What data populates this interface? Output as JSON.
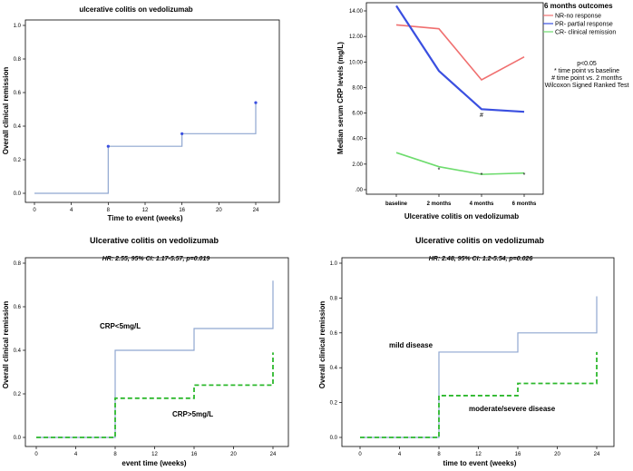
{
  "chart_data": [
    {
      "type": "step",
      "title": "ulcerative colitis on vedolizumab",
      "xlabel": "Time to event (weeks)",
      "ylabel": "Overall clinical remission",
      "xlim": [
        0,
        24
      ],
      "ylim": [
        0,
        1.0
      ],
      "xticks": [
        "0",
        "4",
        "8",
        "12",
        "16",
        "20",
        "24"
      ],
      "yticks": [
        "0.0",
        "0.2",
        "0.4",
        "0.6",
        "0.8",
        "1.0"
      ],
      "series": [
        {
          "color": "#8fa6d0",
          "style": "solid",
          "x": [
            0,
            8,
            16,
            24
          ],
          "y": [
            0,
            0.28,
            0.355,
            0.54
          ],
          "censor": [
            [
              8,
              0.28
            ],
            [
              16,
              0.355
            ],
            [
              24,
              0.54
            ]
          ]
        }
      ]
    },
    {
      "type": "line",
      "title": "6 months outcomes",
      "xlabel": "Ulcerative colitis on vedolizumab",
      "ylabel": "Median serum CRP levels (mg/L)",
      "categories": [
        "baseline",
        "2 months",
        "4 months",
        "6 months"
      ],
      "ylim": [
        0,
        14
      ],
      "yticks": [
        ".00",
        "2.00",
        "4.00",
        "6.00",
        "8.00",
        "10.00",
        "12.00",
        "14.00"
      ],
      "series": [
        {
          "name": "NR-no response",
          "color": "#f07070",
          "values": [
            12.9,
            12.6,
            8.6,
            10.4
          ]
        },
        {
          "name": "PR- partial response",
          "color": "#3a4fe0",
          "values": [
            14.4,
            9.3,
            6.3,
            6.1
          ]
        },
        {
          "name": "CR- clinical remission",
          "color": "#6edc6e",
          "values": [
            2.9,
            1.8,
            1.2,
            1.3
          ]
        }
      ],
      "markers": [
        {
          "label": "*",
          "cat": 1,
          "y": 1.6
        },
        {
          "label": "*",
          "cat": 2,
          "y": 1.2
        },
        {
          "label": "*",
          "cat": 3,
          "y": 1.2
        },
        {
          "label": "#",
          "cat": 2,
          "y": 5.9
        }
      ],
      "notes": [
        "p<0.05",
        "* time point vs baseline",
        "# time point vs. 2 months",
        "Wilcoxon Signed Ranked Test"
      ]
    },
    {
      "type": "step",
      "title": "Ulcerative colitis on vedolizumab",
      "subtitle": "HR: 2.55, 95% CI: 1.17-5.57, p=0.019",
      "xlabel": "event time (weeks)",
      "ylabel": "Overall clinical remission",
      "xlim": [
        0,
        24
      ],
      "ylim": [
        0,
        0.8
      ],
      "xticks": [
        "0",
        "4",
        "8",
        "12",
        "16",
        "20",
        "24"
      ],
      "yticks": [
        "0.0",
        "0.2",
        "0.4",
        "0.6",
        "0.8"
      ],
      "series": [
        {
          "name": "CRP<5mg/L",
          "color": "#8fa6d0",
          "style": "solid",
          "x": [
            0,
            8,
            16,
            24
          ],
          "y": [
            0,
            0.4,
            0.5,
            0.72
          ]
        },
        {
          "name": "CRP>5mg/L",
          "color": "#2db82d",
          "style": "dashed",
          "x": [
            0,
            8,
            16,
            24
          ],
          "y": [
            0,
            0.18,
            0.24,
            0.39
          ]
        }
      ]
    },
    {
      "type": "step",
      "title": "Ulcerative colitis on vedolizumab",
      "subtitle": "HR: 2.48, 95% CI: 1.2-5.54, p=0.026",
      "xlabel": "time to event (weeks)",
      "ylabel": "Overall clinical remission",
      "xlim": [
        0,
        24
      ],
      "ylim": [
        0,
        1.0
      ],
      "xticks": [
        "0",
        "4",
        "8",
        "12",
        "16",
        "20",
        "24"
      ],
      "yticks": [
        "0.0",
        "0.2",
        "0.4",
        "0.6",
        "0.8",
        "1.0"
      ],
      "series": [
        {
          "name": "mild disease",
          "color": "#8fa6d0",
          "style": "solid",
          "x": [
            0,
            8,
            16,
            24
          ],
          "y": [
            0,
            0.49,
            0.6,
            0.81
          ]
        },
        {
          "name": "moderate/severe disease",
          "color": "#2db82d",
          "style": "dashed",
          "x": [
            0,
            8,
            16,
            24
          ],
          "y": [
            0,
            0.24,
            0.31,
            0.49
          ]
        }
      ]
    }
  ]
}
